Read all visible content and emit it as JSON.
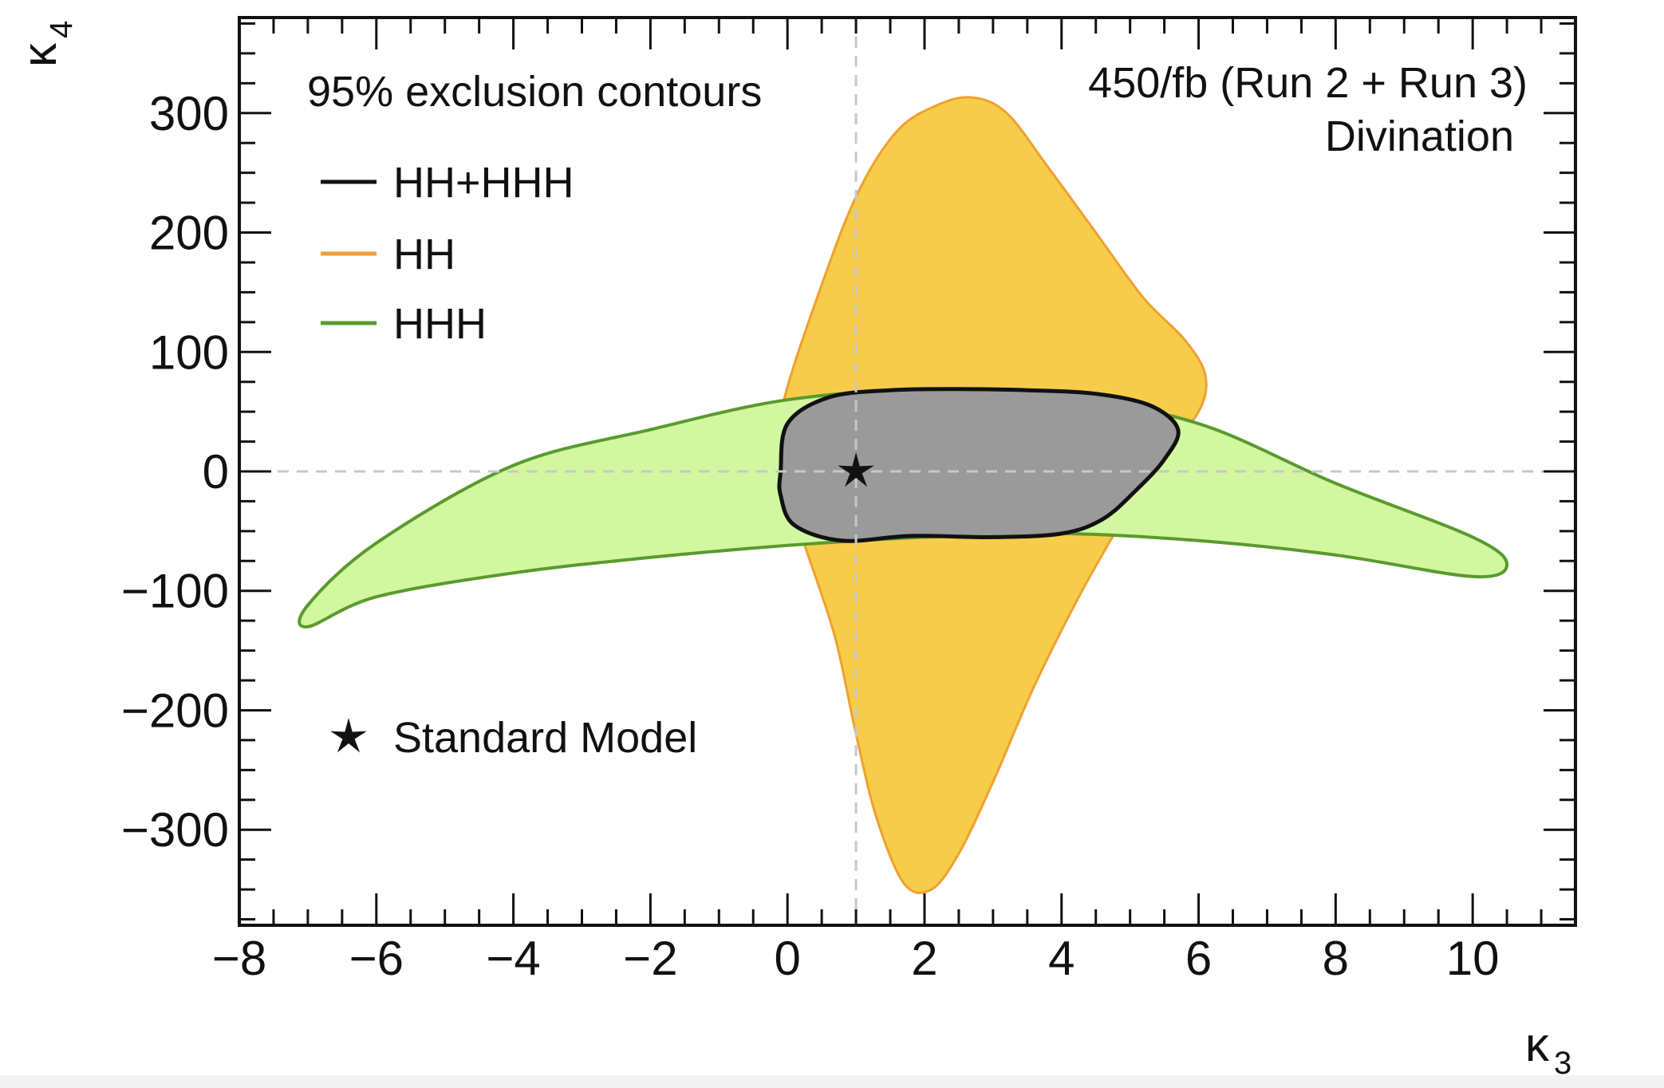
{
  "chart_data": {
    "type": "area",
    "title": "95% exclusion contours",
    "subtitle": "450/fb (Run 2 + Run 3)",
    "annotation": "Divination",
    "xlabel": "κ",
    "xlabel_sub": "3",
    "ylabel": "κ",
    "ylabel_sub": "4",
    "xlim": [
      -8,
      11.5
    ],
    "ylim": [
      -380,
      380
    ],
    "x_ticks": [
      -8,
      -6,
      -4,
      -2,
      0,
      2,
      4,
      6,
      8,
      10
    ],
    "x_tick_labels": [
      "−8",
      "−6",
      "−4",
      "−2",
      "0",
      "2",
      "4",
      "6",
      "8",
      "10"
    ],
    "y_ticks": [
      300,
      200,
      100,
      0,
      -100,
      -200,
      -300
    ],
    "y_tick_labels": [
      "300",
      "200",
      "100",
      "0",
      "−100",
      "−200",
      "−300"
    ],
    "grid": false,
    "reference_lines": {
      "x": 1,
      "y": 0,
      "style": "dashed"
    },
    "legend_position": "top-left",
    "series": [
      {
        "name": "HH",
        "color": "#f0a030",
        "fill": "#f7cc4a",
        "contour": [
          [
            -0.05,
            60
          ],
          [
            0.4,
            140
          ],
          [
            1.0,
            230
          ],
          [
            1.6,
            285
          ],
          [
            2.2,
            307
          ],
          [
            2.7,
            313
          ],
          [
            3.2,
            300
          ],
          [
            3.8,
            255
          ],
          [
            4.5,
            200
          ],
          [
            5.2,
            145
          ],
          [
            5.8,
            110
          ],
          [
            6.1,
            80
          ],
          [
            6.0,
            50
          ],
          [
            5.5,
            15
          ],
          [
            5.0,
            -30
          ],
          [
            4.3,
            -100
          ],
          [
            3.6,
            -180
          ],
          [
            3.0,
            -260
          ],
          [
            2.5,
            -320
          ],
          [
            2.1,
            -350
          ],
          [
            1.7,
            -345
          ],
          [
            1.3,
            -290
          ],
          [
            1.0,
            -220
          ],
          [
            0.7,
            -140
          ],
          [
            0.3,
            -70
          ],
          [
            0.0,
            -20
          ],
          [
            -0.1,
            20
          ]
        ]
      },
      {
        "name": "HHH",
        "color": "#5a9a2e",
        "fill": "#d2f7a0",
        "contour": [
          [
            -7.0,
            -130
          ],
          [
            -6.0,
            -105
          ],
          [
            -4.0,
            -85
          ],
          [
            -2.0,
            -72
          ],
          [
            0.0,
            -62
          ],
          [
            2.0,
            -55
          ],
          [
            4.0,
            -52
          ],
          [
            6.0,
            -58
          ],
          [
            8.0,
            -70
          ],
          [
            10.0,
            -88
          ],
          [
            10.5,
            -78
          ],
          [
            10.0,
            -55
          ],
          [
            8.0,
            -10
          ],
          [
            6.0,
            40
          ],
          [
            4.0,
            62
          ],
          [
            2.0,
            68
          ],
          [
            0.0,
            60
          ],
          [
            -2.0,
            35
          ],
          [
            -4.0,
            5
          ],
          [
            -6.0,
            -60
          ],
          [
            -7.0,
            -112
          ]
        ]
      },
      {
        "name": "HH+HHH",
        "color": "#111111",
        "fill": "#9a9a9a",
        "contour": [
          [
            -0.1,
            0
          ],
          [
            0.0,
            40
          ],
          [
            0.6,
            62
          ],
          [
            1.5,
            68
          ],
          [
            2.5,
            69
          ],
          [
            3.5,
            68
          ],
          [
            4.5,
            65
          ],
          [
            5.3,
            55
          ],
          [
            5.7,
            35
          ],
          [
            5.5,
            10
          ],
          [
            5.1,
            -15
          ],
          [
            4.6,
            -40
          ],
          [
            4.0,
            -52
          ],
          [
            3.0,
            -55
          ],
          [
            1.8,
            -54
          ],
          [
            0.8,
            -58
          ],
          [
            0.1,
            -45
          ],
          [
            -0.1,
            -20
          ]
        ]
      }
    ],
    "markers": [
      {
        "name": "Standard Model",
        "x": 1,
        "y": 0,
        "symbol": "star"
      }
    ]
  }
}
